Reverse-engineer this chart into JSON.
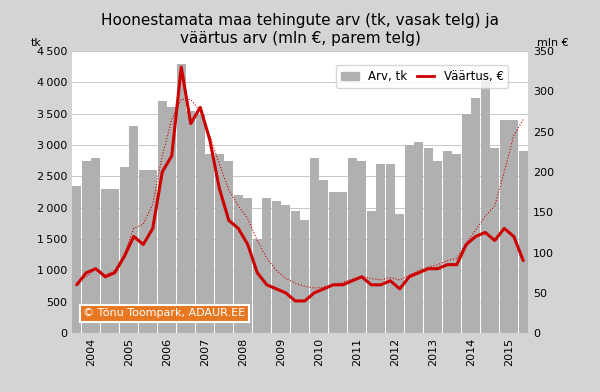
{
  "title": "Hoonestamata maa tehingute arv (tk, vasak telg) ja\nväärtus arv (mln €, parem telg)",
  "ylabel_left": "tk",
  "ylabel_right": "mln €",
  "watermark": "© Tõnu Toompark, ADAUR.EE",
  "bar_color": "#b0b0b0",
  "line_color": "#cc0000",
  "dotted_bar_color": "#999999",
  "dotted_line_color": "#cc0000",
  "background_color": "#d4d4d4",
  "plot_bg_color": "#ffffff",
  "ylim_left": [
    0,
    4500
  ],
  "ylim_right": [
    0,
    350
  ],
  "yticks_left": [
    0,
    500,
    1000,
    1500,
    2000,
    2500,
    3000,
    3500,
    4000,
    4500
  ],
  "yticks_right": [
    0,
    50,
    100,
    150,
    200,
    250,
    300,
    350
  ],
  "bar_values": [
    2350,
    2750,
    2800,
    2300,
    2300,
    2650,
    3300,
    2600,
    2600,
    3700,
    3600,
    4300,
    3550,
    3500,
    2850,
    2850,
    2750,
    2200,
    2150,
    1500,
    2150,
    2100,
    2050,
    1950,
    1800,
    2800,
    2450,
    2250,
    2250,
    2800,
    2750,
    1950,
    2700,
    2700,
    1900,
    3000,
    3050,
    2950,
    2750,
    2900,
    2850,
    3500,
    3750,
    4150,
    2950,
    3400,
    3400,
    2900
  ],
  "line_values": [
    60,
    75,
    80,
    70,
    75,
    95,
    120,
    110,
    130,
    200,
    220,
    330,
    260,
    280,
    240,
    180,
    140,
    130,
    110,
    75,
    60,
    55,
    50,
    40,
    40,
    50,
    55,
    60,
    60,
    65,
    70,
    60,
    60,
    65,
    55,
    70,
    75,
    80,
    80,
    85,
    85,
    110,
    120,
    125,
    115,
    130,
    120,
    90
  ],
  "dotted_values": [
    62,
    70,
    80,
    72,
    78,
    98,
    130,
    135,
    160,
    220,
    265,
    290,
    290,
    275,
    245,
    210,
    178,
    158,
    142,
    115,
    93,
    78,
    68,
    62,
    58,
    56,
    57,
    60,
    63,
    67,
    70,
    68,
    66,
    69,
    66,
    72,
    78,
    82,
    85,
    90,
    93,
    112,
    128,
    145,
    158,
    200,
    245,
    265
  ],
  "xtick_labels": [
    "2004",
    "2005",
    "2006",
    "2007",
    "2008",
    "2009",
    "2010",
    "2011",
    "2012",
    "2013",
    "2014",
    "2015"
  ],
  "xtick_positions": [
    1.5,
    5.5,
    9.5,
    13.5,
    17.5,
    21.5,
    25.5,
    29.5,
    33.5,
    37.5,
    41.5,
    45.5
  ]
}
